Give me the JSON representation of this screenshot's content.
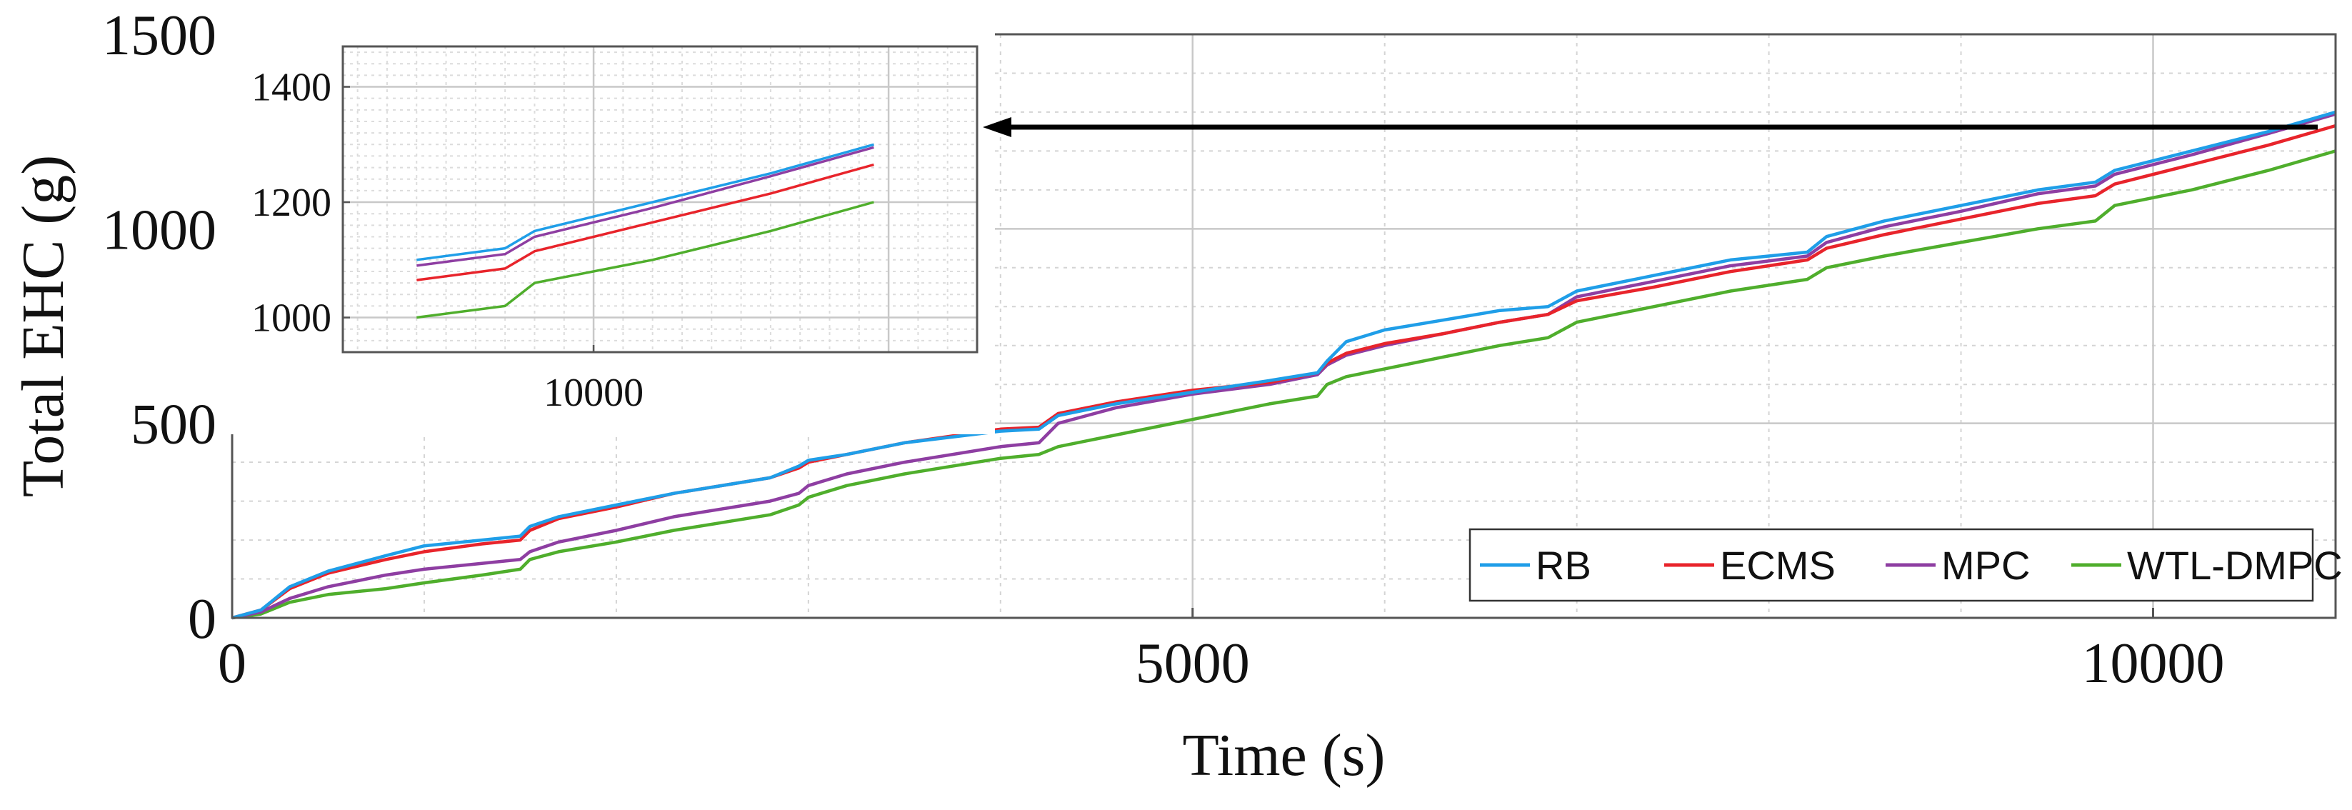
{
  "chart_data": {
    "type": "line",
    "title": "",
    "xlabel": "Time (s)",
    "ylabel": "Total EHC (g)",
    "xlim": [
      0,
      10950
    ],
    "ylim": [
      0,
      1500
    ],
    "xticks": [
      0,
      5000,
      10000
    ],
    "yticks": [
      0,
      500,
      1000,
      1500
    ],
    "grid": true,
    "legend_position": "bottom-right",
    "series": [
      {
        "name": "RB",
        "color": "#1f9ee8",
        "points": [
          [
            0,
            0
          ],
          [
            150,
            20
          ],
          [
            300,
            80
          ],
          [
            500,
            120
          ],
          [
            800,
            160
          ],
          [
            1000,
            185
          ],
          [
            1300,
            200
          ],
          [
            1500,
            210
          ],
          [
            1550,
            235
          ],
          [
            1700,
            260
          ],
          [
            2000,
            290
          ],
          [
            2300,
            320
          ],
          [
            2800,
            360
          ],
          [
            2950,
            390
          ],
          [
            3000,
            405
          ],
          [
            3200,
            420
          ],
          [
            3500,
            450
          ],
          [
            4000,
            480
          ],
          [
            4200,
            485
          ],
          [
            4300,
            520
          ],
          [
            4600,
            550
          ],
          [
            5000,
            580
          ],
          [
            5400,
            610
          ],
          [
            5650,
            630
          ],
          [
            5700,
            660
          ],
          [
            5800,
            710
          ],
          [
            6000,
            740
          ],
          [
            6300,
            765
          ],
          [
            6600,
            790
          ],
          [
            6850,
            800
          ],
          [
            7000,
            840
          ],
          [
            7400,
            880
          ],
          [
            7800,
            920
          ],
          [
            8200,
            940
          ],
          [
            8300,
            980
          ],
          [
            8600,
            1020
          ],
          [
            9000,
            1060
          ],
          [
            9400,
            1100
          ],
          [
            9700,
            1120
          ],
          [
            9800,
            1150
          ],
          [
            10200,
            1200
          ],
          [
            10600,
            1250
          ],
          [
            10950,
            1300
          ]
        ]
      },
      {
        "name": "ECMS",
        "color": "#e8242b",
        "points": [
          [
            0,
            0
          ],
          [
            150,
            20
          ],
          [
            300,
            75
          ],
          [
            500,
            115
          ],
          [
            800,
            150
          ],
          [
            1000,
            170
          ],
          [
            1300,
            190
          ],
          [
            1500,
            200
          ],
          [
            1550,
            225
          ],
          [
            1700,
            255
          ],
          [
            2000,
            285
          ],
          [
            2300,
            320
          ],
          [
            2800,
            360
          ],
          [
            2950,
            385
          ],
          [
            3000,
            400
          ],
          [
            3200,
            420
          ],
          [
            3500,
            450
          ],
          [
            4000,
            485
          ],
          [
            4200,
            490
          ],
          [
            4300,
            525
          ],
          [
            4600,
            555
          ],
          [
            5000,
            585
          ],
          [
            5400,
            605
          ],
          [
            5650,
            630
          ],
          [
            5700,
            655
          ],
          [
            5800,
            680
          ],
          [
            6000,
            705
          ],
          [
            6300,
            730
          ],
          [
            6600,
            760
          ],
          [
            6850,
            780
          ],
          [
            7000,
            815
          ],
          [
            7400,
            850
          ],
          [
            7800,
            890
          ],
          [
            8200,
            920
          ],
          [
            8300,
            950
          ],
          [
            8600,
            985
          ],
          [
            9000,
            1025
          ],
          [
            9400,
            1065
          ],
          [
            9700,
            1085
          ],
          [
            9800,
            1115
          ],
          [
            10200,
            1165
          ],
          [
            10600,
            1215
          ],
          [
            10950,
            1265
          ]
        ]
      },
      {
        "name": "MPC",
        "color": "#8e3ea2",
        "points": [
          [
            0,
            0
          ],
          [
            150,
            15
          ],
          [
            300,
            50
          ],
          [
            500,
            80
          ],
          [
            800,
            110
          ],
          [
            1000,
            125
          ],
          [
            1300,
            140
          ],
          [
            1500,
            150
          ],
          [
            1550,
            170
          ],
          [
            1700,
            195
          ],
          [
            2000,
            225
          ],
          [
            2300,
            260
          ],
          [
            2800,
            300
          ],
          [
            2950,
            320
          ],
          [
            3000,
            340
          ],
          [
            3200,
            370
          ],
          [
            3500,
            400
          ],
          [
            4000,
            440
          ],
          [
            4200,
            450
          ],
          [
            4300,
            500
          ],
          [
            4600,
            540
          ],
          [
            5000,
            575
          ],
          [
            5400,
            600
          ],
          [
            5650,
            625
          ],
          [
            5700,
            650
          ],
          [
            5800,
            675
          ],
          [
            6000,
            700
          ],
          [
            6300,
            730
          ],
          [
            6600,
            760
          ],
          [
            6850,
            780
          ],
          [
            7000,
            825
          ],
          [
            7400,
            865
          ],
          [
            7800,
            905
          ],
          [
            8200,
            930
          ],
          [
            8300,
            965
          ],
          [
            8600,
            1005
          ],
          [
            9000,
            1045
          ],
          [
            9400,
            1090
          ],
          [
            9700,
            1110
          ],
          [
            9800,
            1140
          ],
          [
            10200,
            1190
          ],
          [
            10600,
            1245
          ],
          [
            10950,
            1295
          ]
        ]
      },
      {
        "name": "WTL-DMPC",
        "color": "#4fae2c",
        "points": [
          [
            0,
            0
          ],
          [
            150,
            10
          ],
          [
            300,
            40
          ],
          [
            500,
            60
          ],
          [
            800,
            75
          ],
          [
            1000,
            90
          ],
          [
            1300,
            110
          ],
          [
            1500,
            125
          ],
          [
            1550,
            150
          ],
          [
            1700,
            170
          ],
          [
            2000,
            195
          ],
          [
            2300,
            225
          ],
          [
            2800,
            265
          ],
          [
            2950,
            290
          ],
          [
            3000,
            310
          ],
          [
            3200,
            340
          ],
          [
            3500,
            370
          ],
          [
            4000,
            410
          ],
          [
            4200,
            420
          ],
          [
            4300,
            440
          ],
          [
            4600,
            470
          ],
          [
            5000,
            510
          ],
          [
            5400,
            550
          ],
          [
            5650,
            570
          ],
          [
            5700,
            600
          ],
          [
            5800,
            620
          ],
          [
            6000,
            640
          ],
          [
            6300,
            670
          ],
          [
            6600,
            700
          ],
          [
            6850,
            720
          ],
          [
            7000,
            760
          ],
          [
            7400,
            800
          ],
          [
            7800,
            840
          ],
          [
            8200,
            870
          ],
          [
            8300,
            900
          ],
          [
            8600,
            930
          ],
          [
            9000,
            965
          ],
          [
            9400,
            1000
          ],
          [
            9700,
            1020
          ],
          [
            9800,
            1060
          ],
          [
            10200,
            1100
          ],
          [
            10600,
            1150
          ],
          [
            10950,
            1200
          ]
        ]
      }
    ],
    "inset": {
      "xlim": [
        9150,
        11300
      ],
      "ylim": [
        940,
        1470
      ],
      "xticks": [
        10000
      ],
      "yticks": [
        1000,
        1200,
        1400
      ],
      "grid": true
    }
  }
}
